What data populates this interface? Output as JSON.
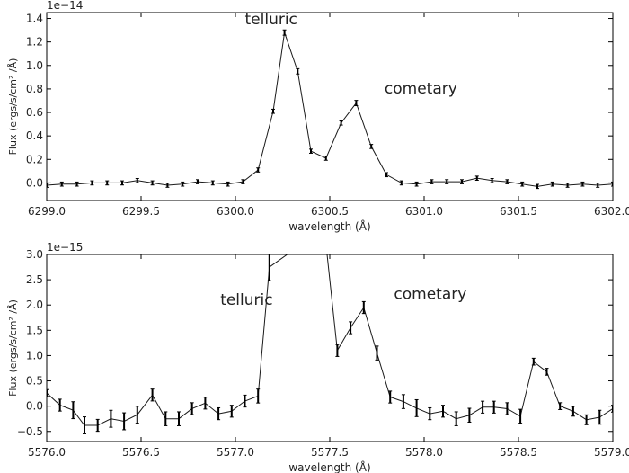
{
  "chart_data": [
    {
      "type": "line",
      "title": "",
      "xlabel": "wavelength (Å)",
      "ylabel": "Flux (ergs/s/cm² /Å)",
      "y_scale_label": "1e−14",
      "xlim": [
        6299.0,
        6302.0
      ],
      "ylim": [
        -0.15,
        1.45
      ],
      "x_ticks": [
        6299.0,
        6299.5,
        6300.0,
        6300.5,
        6301.0,
        6301.5,
        6302.0
      ],
      "x_tick_labels": [
        "6299.0",
        "6299.5",
        "6300.0",
        "6300.5",
        "6301.0",
        "6301.5",
        "6302.0"
      ],
      "y_ticks": [
        0.0,
        0.2,
        0.4,
        0.6,
        0.8,
        1.0,
        1.2,
        1.4
      ],
      "y_tick_labels": [
        "0.0",
        "0.2",
        "0.4",
        "0.6",
        "0.8",
        "1.0",
        "1.2",
        "1.4"
      ],
      "grid": false,
      "series": [
        {
          "x": [
            6299.0,
            6299.08,
            6299.16,
            6299.24,
            6299.32,
            6299.4,
            6299.48,
            6299.56,
            6299.64,
            6299.72,
            6299.8,
            6299.88,
            6299.96,
            6300.04,
            6300.12,
            6300.2,
            6300.26,
            6300.33,
            6300.4,
            6300.48,
            6300.56,
            6300.64,
            6300.72,
            6300.8,
            6300.88,
            6300.96,
            6301.04,
            6301.12,
            6301.2,
            6301.28,
            6301.36,
            6301.44,
            6301.52,
            6301.6,
            6301.68,
            6301.76,
            6301.84,
            6301.92,
            6302.0
          ],
          "y": [
            -0.02,
            -0.01,
            -0.01,
            0.0,
            0.0,
            0.0,
            0.02,
            0.0,
            -0.02,
            -0.01,
            0.01,
            0.0,
            -0.01,
            0.01,
            0.11,
            0.61,
            1.28,
            0.95,
            0.27,
            0.21,
            0.51,
            0.68,
            0.31,
            0.07,
            0.0,
            -0.01,
            0.01,
            0.01,
            0.01,
            0.04,
            0.02,
            0.01,
            -0.01,
            -0.03,
            -0.01,
            -0.02,
            -0.01,
            -0.02,
            -0.01
          ],
          "err": [
            0.01,
            0.01,
            0.01,
            0.01,
            0.01,
            0.01,
            0.01,
            0.01,
            0.01,
            0.01,
            0.01,
            0.01,
            0.01,
            0.01,
            0.01,
            0.01,
            0.015,
            0.015,
            0.01,
            0.01,
            0.01,
            0.015,
            0.01,
            0.01,
            0.01,
            0.01,
            0.01,
            0.01,
            0.01,
            0.01,
            0.01,
            0.01,
            0.01,
            0.01,
            0.01,
            0.01,
            0.01,
            0.01,
            0.01
          ]
        }
      ],
      "annotations": [
        {
          "text": "telluric",
          "x": 6300.05,
          "y": 1.35
        },
        {
          "text": "cometary",
          "x": 6300.79,
          "y": 0.76
        }
      ],
      "line_color": "#1a1a1a"
    },
    {
      "type": "line",
      "title": "",
      "xlabel": "wavelength (Å)",
      "ylabel": "Flux (ergs/s/cm² /Å)",
      "y_scale_label": "1e−15",
      "xlim": [
        5576.0,
        5579.0
      ],
      "ylim": [
        -0.7,
        3.0
      ],
      "x_ticks": [
        5576.0,
        5576.5,
        5577.0,
        5577.5,
        5578.0,
        5578.5,
        5579.0
      ],
      "x_tick_labels": [
        "5576.0",
        "5576.5",
        "5577.0",
        "5577.5",
        "5578.0",
        "5578.5",
        "5579.0"
      ],
      "y_ticks": [
        -0.5,
        0.0,
        0.5,
        1.0,
        1.5,
        2.0,
        2.5,
        3.0
      ],
      "y_tick_labels": [
        "−0.5",
        "0.0",
        "0.5",
        "1.0",
        "1.5",
        "2.0",
        "2.5",
        "3.0"
      ],
      "grid": false,
      "series": [
        {
          "x": [
            5576.0,
            5576.07,
            5576.14,
            5576.2,
            5576.27,
            5576.34,
            5576.41,
            5576.48,
            5576.56,
            5576.63,
            5576.7,
            5576.77,
            5576.84,
            5576.91,
            5576.98,
            5577.05,
            5577.12,
            5577.18,
            5577.35,
            5577.48,
            5577.54,
            5577.61,
            5577.68,
            5577.75,
            5577.82,
            5577.89,
            5577.96,
            5578.03,
            5578.1,
            5578.17,
            5578.24,
            5578.31,
            5578.37,
            5578.44,
            5578.51,
            5578.58,
            5578.65,
            5578.72,
            5578.79,
            5578.86,
            5578.93,
            5579.0
          ],
          "y": [
            0.26,
            0.02,
            -0.08,
            -0.38,
            -0.38,
            -0.25,
            -0.3,
            -0.17,
            0.22,
            -0.25,
            -0.25,
            -0.05,
            0.06,
            -0.15,
            -0.1,
            0.1,
            0.2,
            2.75,
            3.2,
            3.2,
            1.1,
            1.55,
            1.95,
            1.05,
            0.18,
            0.09,
            -0.04,
            -0.15,
            -0.1,
            -0.25,
            -0.18,
            -0.02,
            -0.02,
            -0.05,
            -0.2,
            0.88,
            0.68,
            0.0,
            -0.1,
            -0.27,
            -0.22,
            -0.05
          ],
          "err": [
            0.05,
            0.1,
            0.15,
            0.15,
            0.1,
            0.15,
            0.15,
            0.15,
            0.1,
            0.12,
            0.12,
            0.1,
            0.1,
            0.1,
            0.1,
            0.1,
            0.12,
            0.25,
            0.0,
            0.0,
            0.1,
            0.1,
            0.1,
            0.12,
            0.1,
            0.12,
            0.15,
            0.1,
            0.1,
            0.12,
            0.12,
            0.1,
            0.1,
            0.1,
            0.12,
            0.05,
            0.05,
            0.05,
            0.08,
            0.08,
            0.12,
            0.05
          ]
        }
      ],
      "annotations": [
        {
          "text": "telluric",
          "x": 5576.92,
          "y": 2.0
        },
        {
          "text": "cometary",
          "x": 5577.84,
          "y": 2.12
        }
      ],
      "line_color": "#1a1a1a"
    }
  ]
}
